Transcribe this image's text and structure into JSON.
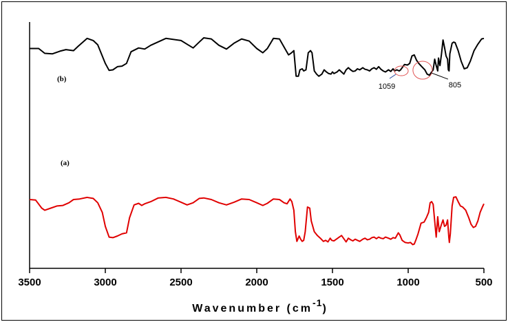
{
  "chart_data": {
    "type": "line",
    "title": "",
    "xlabel": "Wavenumber (cm",
    "xlabel_superscript": "-1",
    "xlabel_close": ")",
    "ylabel": "",
    "xlim": [
      3500,
      500
    ],
    "ylim": [
      0,
      1
    ],
    "x_reversed": true,
    "grid": false,
    "xticks": [
      3500,
      3000,
      2500,
      2000,
      1500,
      1000,
      500
    ],
    "series": [
      {
        "name": "(b)",
        "color": "#000000",
        "points": [
          [
            3500,
            0.9
          ],
          [
            3440,
            0.9
          ],
          [
            3400,
            0.855
          ],
          [
            3350,
            0.85
          ],
          [
            3300,
            0.875
          ],
          [
            3260,
            0.89
          ],
          [
            3210,
            0.88
          ],
          [
            3180,
            0.92
          ],
          [
            3120,
            0.995
          ],
          [
            3080,
            0.975
          ],
          [
            3050,
            0.935
          ],
          [
            3000,
            0.76
          ],
          [
            2975,
            0.695
          ],
          [
            2950,
            0.7
          ],
          [
            2920,
            0.73
          ],
          [
            2890,
            0.735
          ],
          [
            2860,
            0.76
          ],
          [
            2830,
            0.87
          ],
          [
            2780,
            0.905
          ],
          [
            2740,
            0.895
          ],
          [
            2700,
            0.93
          ],
          [
            2600,
            0.995
          ],
          [
            2500,
            0.975
          ],
          [
            2460,
            0.94
          ],
          [
            2420,
            0.905
          ],
          [
            2380,
            0.96
          ],
          [
            2350,
            1.0
          ],
          [
            2300,
            0.99
          ],
          [
            2250,
            0.93
          ],
          [
            2200,
            0.895
          ],
          [
            2150,
            0.95
          ],
          [
            2100,
            0.99
          ],
          [
            2050,
            0.97
          ],
          [
            2000,
            0.9
          ],
          [
            1960,
            0.86
          ],
          [
            1930,
            0.9
          ],
          [
            1890,
            0.995
          ],
          [
            1850,
            0.99
          ],
          [
            1810,
            0.89
          ],
          [
            1790,
            0.84
          ],
          [
            1770,
            0.86
          ],
          [
            1755,
            0.88
          ],
          [
            1740,
            0.64
          ],
          [
            1725,
            0.64
          ],
          [
            1715,
            0.7
          ],
          [
            1700,
            0.71
          ],
          [
            1690,
            0.69
          ],
          [
            1675,
            0.7
          ],
          [
            1660,
            0.86
          ],
          [
            1645,
            0.88
          ],
          [
            1635,
            0.86
          ],
          [
            1620,
            0.69
          ],
          [
            1605,
            0.66
          ],
          [
            1590,
            0.64
          ],
          [
            1570,
            0.66
          ],
          [
            1555,
            0.7
          ],
          [
            1540,
            0.68
          ],
          [
            1525,
            0.665
          ],
          [
            1510,
            0.66
          ],
          [
            1500,
            0.68
          ],
          [
            1490,
            0.665
          ],
          [
            1470,
            0.68
          ],
          [
            1455,
            0.7
          ],
          [
            1440,
            0.68
          ],
          [
            1425,
            0.66
          ],
          [
            1410,
            0.7
          ],
          [
            1395,
            0.72
          ],
          [
            1380,
            0.7
          ],
          [
            1365,
            0.685
          ],
          [
            1350,
            0.69
          ],
          [
            1335,
            0.71
          ],
          [
            1320,
            0.7
          ],
          [
            1300,
            0.72
          ],
          [
            1285,
            0.705
          ],
          [
            1270,
            0.7
          ],
          [
            1255,
            0.69
          ],
          [
            1240,
            0.71
          ],
          [
            1225,
            0.72
          ],
          [
            1210,
            0.705
          ],
          [
            1195,
            0.73
          ],
          [
            1180,
            0.705
          ],
          [
            1165,
            0.69
          ],
          [
            1150,
            0.68
          ],
          [
            1130,
            0.7
          ],
          [
            1115,
            0.685
          ],
          [
            1100,
            0.71
          ],
          [
            1090,
            0.69
          ],
          [
            1075,
            0.7
          ],
          [
            1059,
            0.69
          ],
          [
            1050,
            0.7
          ],
          [
            1040,
            0.72
          ],
          [
            1025,
            0.75
          ],
          [
            1005,
            0.745
          ],
          [
            990,
            0.76
          ],
          [
            975,
            0.83
          ],
          [
            960,
            0.84
          ],
          [
            945,
            0.79
          ],
          [
            930,
            0.76
          ],
          [
            910,
            0.73
          ],
          [
            890,
            0.7
          ],
          [
            875,
            0.66
          ],
          [
            860,
            0.65
          ],
          [
            845,
            0.68
          ],
          [
            835,
            0.7
          ],
          [
            825,
            0.8
          ],
          [
            815,
            0.74
          ],
          [
            805,
            0.69
          ],
          [
            800,
            0.81
          ],
          [
            795,
            0.77
          ],
          [
            790,
            0.74
          ],
          [
            780,
            0.85
          ],
          [
            770,
            0.98
          ],
          [
            760,
            0.91
          ],
          [
            750,
            0.83
          ],
          [
            740,
            0.8
          ],
          [
            735,
            0.7
          ],
          [
            730,
            0.69
          ],
          [
            725,
            0.85
          ],
          [
            710,
            0.95
          ],
          [
            700,
            0.96
          ],
          [
            690,
            0.955
          ],
          [
            670,
            0.88
          ],
          [
            650,
            0.78
          ],
          [
            630,
            0.71
          ],
          [
            610,
            0.72
          ],
          [
            590,
            0.78
          ],
          [
            565,
            0.88
          ],
          [
            540,
            0.94
          ],
          [
            515,
            0.99
          ],
          [
            500,
            0.995
          ]
        ]
      },
      {
        "name": "(a)",
        "color": "#e00000",
        "points": [
          [
            3500,
            0.5
          ],
          [
            3460,
            0.495
          ],
          [
            3420,
            0.42
          ],
          [
            3400,
            0.4
          ],
          [
            3360,
            0.42
          ],
          [
            3320,
            0.44
          ],
          [
            3280,
            0.445
          ],
          [
            3240,
            0.47
          ],
          [
            3210,
            0.5
          ],
          [
            3170,
            0.505
          ],
          [
            3120,
            0.52
          ],
          [
            3080,
            0.51
          ],
          [
            3050,
            0.47
          ],
          [
            3020,
            0.38
          ],
          [
            3000,
            0.25
          ],
          [
            2975,
            0.15
          ],
          [
            2950,
            0.145
          ],
          [
            2920,
            0.16
          ],
          [
            2890,
            0.18
          ],
          [
            2860,
            0.19
          ],
          [
            2840,
            0.33
          ],
          [
            2810,
            0.45
          ],
          [
            2780,
            0.465
          ],
          [
            2760,
            0.445
          ],
          [
            2740,
            0.46
          ],
          [
            2700,
            0.48
          ],
          [
            2650,
            0.515
          ],
          [
            2600,
            0.52
          ],
          [
            2550,
            0.505
          ],
          [
            2500,
            0.475
          ],
          [
            2460,
            0.45
          ],
          [
            2420,
            0.47
          ],
          [
            2380,
            0.51
          ],
          [
            2350,
            0.515
          ],
          [
            2300,
            0.5
          ],
          [
            2250,
            0.47
          ],
          [
            2200,
            0.45
          ],
          [
            2150,
            0.475
          ],
          [
            2100,
            0.505
          ],
          [
            2050,
            0.5
          ],
          [
            2000,
            0.47
          ],
          [
            1960,
            0.445
          ],
          [
            1930,
            0.465
          ],
          [
            1890,
            0.505
          ],
          [
            1850,
            0.5
          ],
          [
            1820,
            0.47
          ],
          [
            1800,
            0.46
          ],
          [
            1780,
            0.505
          ],
          [
            1768,
            0.48
          ],
          [
            1755,
            0.4
          ],
          [
            1745,
            0.2
          ],
          [
            1735,
            0.11
          ],
          [
            1720,
            0.16
          ],
          [
            1710,
            0.13
          ],
          [
            1700,
            0.11
          ],
          [
            1690,
            0.12
          ],
          [
            1680,
            0.2
          ],
          [
            1665,
            0.43
          ],
          [
            1650,
            0.42
          ],
          [
            1640,
            0.3
          ],
          [
            1620,
            0.2
          ],
          [
            1600,
            0.165
          ],
          [
            1580,
            0.14
          ],
          [
            1560,
            0.11
          ],
          [
            1545,
            0.12
          ],
          [
            1530,
            0.105
          ],
          [
            1515,
            0.14
          ],
          [
            1505,
            0.12
          ],
          [
            1490,
            0.115
          ],
          [
            1470,
            0.135
          ],
          [
            1455,
            0.15
          ],
          [
            1440,
            0.165
          ],
          [
            1425,
            0.135
          ],
          [
            1410,
            0.105
          ],
          [
            1395,
            0.14
          ],
          [
            1380,
            0.125
          ],
          [
            1365,
            0.115
          ],
          [
            1350,
            0.13
          ],
          [
            1335,
            0.12
          ],
          [
            1320,
            0.11
          ],
          [
            1300,
            0.13
          ],
          [
            1285,
            0.14
          ],
          [
            1270,
            0.125
          ],
          [
            1255,
            0.13
          ],
          [
            1240,
            0.145
          ],
          [
            1225,
            0.15
          ],
          [
            1210,
            0.135
          ],
          [
            1195,
            0.15
          ],
          [
            1180,
            0.14
          ],
          [
            1165,
            0.135
          ],
          [
            1150,
            0.15
          ],
          [
            1130,
            0.14
          ],
          [
            1115,
            0.13
          ],
          [
            1100,
            0.145
          ],
          [
            1085,
            0.14
          ],
          [
            1065,
            0.19
          ],
          [
            1055,
            0.17
          ],
          [
            1040,
            0.12
          ],
          [
            1020,
            0.1
          ],
          [
            1000,
            0.095
          ],
          [
            985,
            0.1
          ],
          [
            970,
            0.08
          ],
          [
            960,
            0.085
          ],
          [
            950,
            0.12
          ],
          [
            935,
            0.18
          ],
          [
            915,
            0.28
          ],
          [
            895,
            0.29
          ],
          [
            880,
            0.33
          ],
          [
            865,
            0.38
          ],
          [
            855,
            0.47
          ],
          [
            845,
            0.48
          ],
          [
            835,
            0.455
          ],
          [
            825,
            0.3
          ],
          [
            815,
            0.15
          ],
          [
            805,
            0.34
          ],
          [
            795,
            0.2
          ],
          [
            780,
            0.27
          ],
          [
            770,
            0.31
          ],
          [
            760,
            0.25
          ],
          [
            750,
            0.26
          ],
          [
            740,
            0.31
          ],
          [
            732,
            0.15
          ],
          [
            728,
            0.1
          ],
          [
            722,
            0.18
          ],
          [
            710,
            0.44
          ],
          [
            700,
            0.52
          ],
          [
            685,
            0.525
          ],
          [
            670,
            0.48
          ],
          [
            655,
            0.44
          ],
          [
            640,
            0.43
          ],
          [
            620,
            0.4
          ],
          [
            600,
            0.33
          ],
          [
            585,
            0.27
          ],
          [
            570,
            0.24
          ],
          [
            555,
            0.25
          ],
          [
            540,
            0.3
          ],
          [
            525,
            0.38
          ],
          [
            510,
            0.43
          ],
          [
            500,
            0.46
          ]
        ]
      }
    ],
    "annotations": [
      {
        "text": "1059",
        "x": 1059,
        "y": 0.69
      },
      {
        "text": "805",
        "x": 805,
        "y": 0.69
      }
    ],
    "annotation_color": "#e05050"
  }
}
